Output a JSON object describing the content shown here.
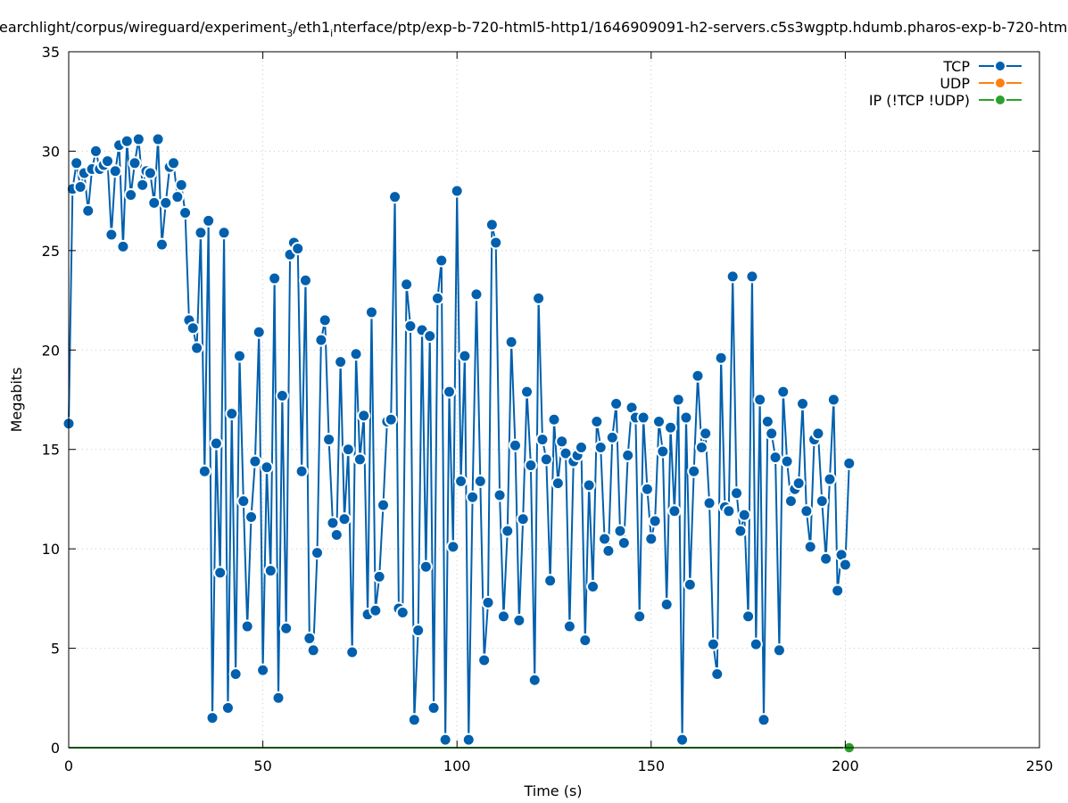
{
  "chart_data": {
    "type": "line",
    "title_parts": [
      {
        "text": "earchlight/corpus/wireguard/experiment",
        "style": "normal"
      },
      {
        "text": "3",
        "style": "sub"
      },
      {
        "text": "/eth1",
        "style": "normal"
      },
      {
        "text": "i",
        "style": "sub"
      },
      {
        "text": "nterface/ptp/exp-b-720-html5-http1/1646909091-h2-servers.c5s3wgptp.hdumb.pharos-exp-b-720-htm",
        "style": "normal"
      }
    ],
    "xlabel": "Time (s)",
    "ylabel": "Megabits",
    "xlim": [
      0,
      250
    ],
    "ylim": [
      0,
      35
    ],
    "xticks": [
      "0",
      "50",
      "100",
      "150",
      "200",
      "250"
    ],
    "yticks": [
      "0",
      "5",
      "10",
      "15",
      "20",
      "25",
      "30",
      "35"
    ],
    "grid": true,
    "legend_position": "top-right",
    "series": [
      {
        "name": "TCP",
        "color": "#0060ad",
        "x_start": 0,
        "x_step": 1,
        "values": [
          16.3,
          28.1,
          29.4,
          28.2,
          28.9,
          27.0,
          29.1,
          30.0,
          29.1,
          29.3,
          29.5,
          25.8,
          29.0,
          30.3,
          25.2,
          30.5,
          27.8,
          29.4,
          30.6,
          28.3,
          29.0,
          28.9,
          27.4,
          30.6,
          25.3,
          27.4,
          29.2,
          29.4,
          27.7,
          28.3,
          26.9,
          21.5,
          21.1,
          20.1,
          25.9,
          13.9,
          26.5,
          1.5,
          15.3,
          8.8,
          25.9,
          2.0,
          16.8,
          3.7,
          19.7,
          12.4,
          6.1,
          11.6,
          14.4,
          20.9,
          3.9,
          14.1,
          8.9,
          23.6,
          2.5,
          17.7,
          6.0,
          24.8,
          25.4,
          25.1,
          13.9,
          23.5,
          5.5,
          4.9,
          9.8,
          20.5,
          21.5,
          15.5,
          11.3,
          10.7,
          19.4,
          11.5,
          15.0,
          4.8,
          19.8,
          14.5,
          16.7,
          6.7,
          21.9,
          6.9,
          8.6,
          12.2,
          16.4,
          16.5,
          27.7,
          7.0,
          6.8,
          23.3,
          21.2,
          1.4,
          5.9,
          21.0,
          9.1,
          20.7,
          2.0,
          22.6,
          24.5,
          0.4,
          17.9,
          10.1,
          28.0,
          13.4,
          19.7,
          0.4,
          12.6,
          22.8,
          13.4,
          4.4,
          7.3,
          26.3,
          25.4,
          12.7,
          6.6,
          10.9,
          20.4,
          15.2,
          6.4,
          11.5,
          17.9,
          14.2,
          3.4,
          22.6,
          15.5,
          14.5,
          8.4,
          16.5,
          13.3,
          15.4,
          14.8,
          6.1,
          14.4,
          14.7,
          15.1,
          5.4,
          13.2,
          8.1,
          16.4,
          15.1,
          10.5,
          9.9,
          15.6,
          17.3,
          10.9,
          10.3,
          14.7,
          17.1,
          16.6,
          6.6,
          16.6,
          13.0,
          10.5,
          11.4,
          16.4,
          14.9,
          7.2,
          16.1,
          11.9,
          17.5,
          0.4,
          16.6,
          8.2,
          13.9,
          18.7,
          15.1,
          15.8,
          12.3,
          5.2,
          3.7,
          19.6,
          12.1,
          11.9,
          23.7,
          12.8,
          10.9,
          11.7,
          6.6,
          23.7,
          5.2,
          17.5,
          1.4,
          16.4,
          15.8,
          14.6,
          4.9,
          17.9,
          14.4,
          12.4,
          13.0,
          13.3,
          17.3,
          11.9,
          10.1,
          15.5,
          15.8,
          12.4,
          9.5,
          13.5,
          17.5,
          7.9,
          9.7,
          9.2,
          14.3
        ]
      },
      {
        "name": "UDP",
        "color": "#ff7f0e",
        "x_start": 0,
        "x_step": 1,
        "constant": 0,
        "count": 202
      },
      {
        "name": "IP (!TCP  !UDP)",
        "color": "#2ca02c",
        "x_start": 0,
        "x_step": 1,
        "constant": 0,
        "count": 202
      }
    ]
  }
}
